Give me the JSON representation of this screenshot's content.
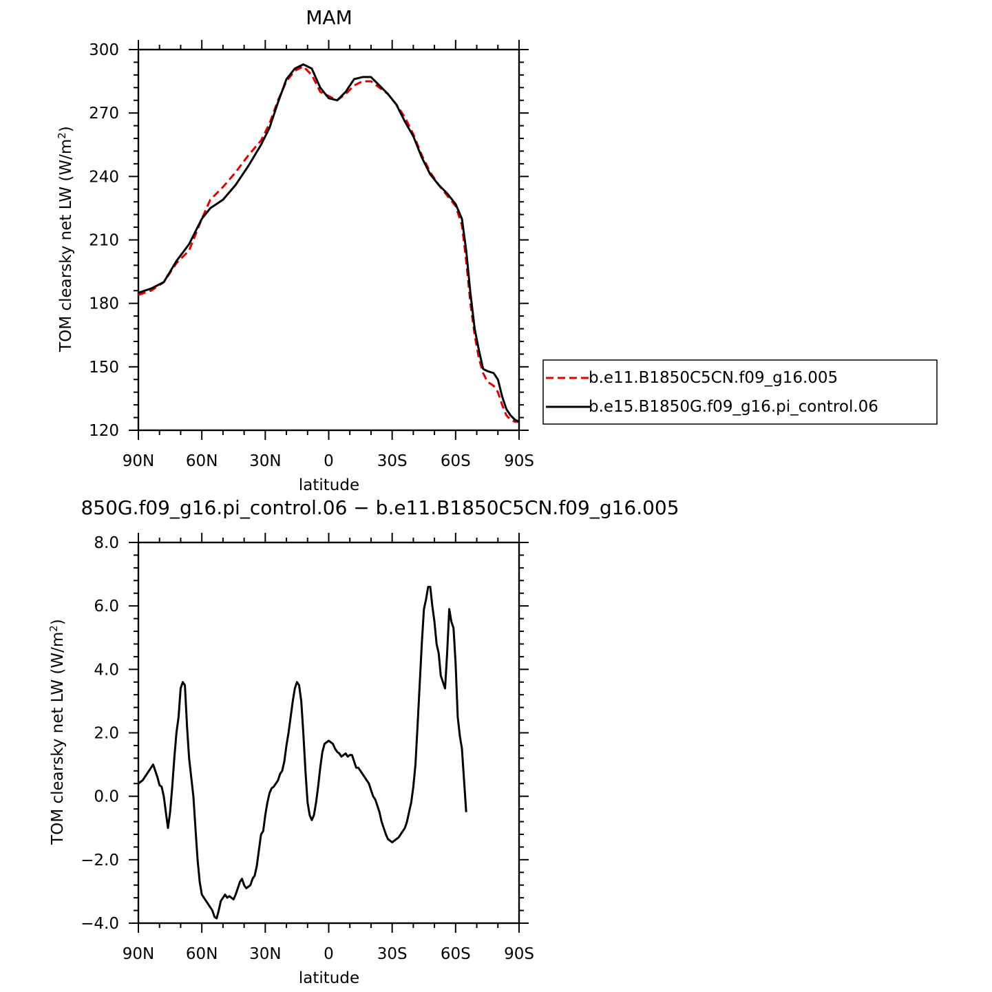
{
  "chart_data": [
    {
      "type": "line",
      "title": "MAM",
      "xlabel": "latitude",
      "ylabel_main": "TOM clearsky net LW (W/m",
      "ylabel_sup": "2",
      "ylabel_close": ")",
      "xlim": [
        -90,
        90
      ],
      "ylim": [
        120,
        300
      ],
      "x_ticks": [
        {
          "value": -90,
          "label": "90N"
        },
        {
          "value": -60,
          "label": "60N"
        },
        {
          "value": -30,
          "label": "30N"
        },
        {
          "value": 0,
          "label": "0"
        },
        {
          "value": 30,
          "label": "30S"
        },
        {
          "value": 60,
          "label": "60S"
        },
        {
          "value": 90,
          "label": "90S"
        }
      ],
      "y_ticks": [
        {
          "value": 120,
          "label": "120"
        },
        {
          "value": 150,
          "label": "150"
        },
        {
          "value": 180,
          "label": "180"
        },
        {
          "value": 210,
          "label": "210"
        },
        {
          "value": 240,
          "label": "240"
        },
        {
          "value": 270,
          "label": "270"
        },
        {
          "value": 300,
          "label": "300"
        }
      ],
      "legend": {
        "position": "right",
        "entries": [
          {
            "label": "b.e11.B1850C5CN.f09_g16.005",
            "color": "#e00000",
            "dash": "dashed"
          },
          {
            "label": "b.e15.B1850G.f09_g16.pi_control.06",
            "color": "#000000",
            "dash": "solid"
          }
        ]
      },
      "series": [
        {
          "name": "b.e11.B1850C5CN.f09_g16.005",
          "color": "#e00000",
          "dash": "dashed",
          "points": [
            [
              -90,
              184
            ],
            [
              -84,
              186
            ],
            [
              -78,
              190
            ],
            [
              -72,
              199
            ],
            [
              -66,
              205
            ],
            [
              -60,
              220
            ],
            [
              -56,
              229
            ],
            [
              -50,
              235
            ],
            [
              -44,
              242
            ],
            [
              -38,
              250
            ],
            [
              -32,
              257
            ],
            [
              -28,
              265
            ],
            [
              -24,
              276
            ],
            [
              -20,
              285
            ],
            [
              -16,
              290
            ],
            [
              -12,
              292
            ],
            [
              -8,
              288
            ],
            [
              -4,
              280
            ],
            [
              0,
              278
            ],
            [
              4,
              276
            ],
            [
              8,
              279
            ],
            [
              12,
              283
            ],
            [
              16,
              285
            ],
            [
              20,
              285
            ],
            [
              24,
              282
            ],
            [
              28,
              279
            ],
            [
              32,
              274
            ],
            [
              36,
              268
            ],
            [
              40,
              260
            ],
            [
              44,
              250
            ],
            [
              48,
              242
            ],
            [
              52,
              236
            ],
            [
              56,
              231
            ],
            [
              60,
              226
            ],
            [
              63,
              217
            ],
            [
              65,
              200
            ],
            [
              67,
              180
            ],
            [
              69,
              165
            ],
            [
              71,
              154
            ],
            [
              73,
              147
            ],
            [
              75,
              143
            ],
            [
              78,
              141
            ],
            [
              80,
              138
            ],
            [
              82,
              132
            ],
            [
              84,
              127
            ],
            [
              86,
              125
            ],
            [
              88,
              124
            ],
            [
              90,
              124
            ]
          ]
        },
        {
          "name": "b.e15.B1850G.f09_g16.pi_control.06",
          "color": "#000000",
          "dash": "solid",
          "points": [
            [
              -90,
              185
            ],
            [
              -84,
              187
            ],
            [
              -78,
              190
            ],
            [
              -72,
              200
            ],
            [
              -66,
              208
            ],
            [
              -60,
              220
            ],
            [
              -56,
              225
            ],
            [
              -50,
              229
            ],
            [
              -44,
              236
            ],
            [
              -38,
              245
            ],
            [
              -32,
              255
            ],
            [
              -28,
              263
            ],
            [
              -24,
              275
            ],
            [
              -20,
              286
            ],
            [
              -16,
              291
            ],
            [
              -12,
              293
            ],
            [
              -8,
              291
            ],
            [
              -4,
              282
            ],
            [
              0,
              277
            ],
            [
              4,
              276
            ],
            [
              8,
              280
            ],
            [
              12,
              286
            ],
            [
              16,
              287
            ],
            [
              20,
              287
            ],
            [
              24,
              283
            ],
            [
              28,
              279
            ],
            [
              32,
              274
            ],
            [
              36,
              266
            ],
            [
              40,
              259
            ],
            [
              44,
              249
            ],
            [
              48,
              241
            ],
            [
              52,
              236
            ],
            [
              56,
              232
            ],
            [
              60,
              227
            ],
            [
              63,
              220
            ],
            [
              65,
              205
            ],
            [
              67,
              185
            ],
            [
              69,
              168
            ],
            [
              71,
              158
            ],
            [
              73,
              149
            ],
            [
              75,
              148
            ],
            [
              78,
              147
            ],
            [
              80,
              144
            ],
            [
              82,
              136
            ],
            [
              84,
              130
            ],
            [
              86,
              127
            ],
            [
              88,
              125
            ],
            [
              90,
              124
            ]
          ]
        }
      ]
    },
    {
      "type": "line",
      "title": "850G.f09_g16.pi_control.06 − b.e11.B1850C5CN.f09_g16.005",
      "xlabel": "latitude",
      "ylabel_main": "TOM clearsky net LW (W/m",
      "ylabel_sup": "2",
      "ylabel_close": ")",
      "xlim": [
        -90,
        90
      ],
      "ylim": [
        -4.0,
        8.0
      ],
      "x_ticks": [
        {
          "value": -90,
          "label": "90N"
        },
        {
          "value": -60,
          "label": "60N"
        },
        {
          "value": -30,
          "label": "30N"
        },
        {
          "value": 0,
          "label": "0"
        },
        {
          "value": 30,
          "label": "30S"
        },
        {
          "value": 60,
          "label": "60S"
        },
        {
          "value": 90,
          "label": "90S"
        }
      ],
      "y_ticks": [
        {
          "value": -4.0,
          "label": "−4.0"
        },
        {
          "value": -2.0,
          "label": "−2.0"
        },
        {
          "value": 0.0,
          "label": "0.0"
        },
        {
          "value": 2.0,
          "label": "2.0"
        },
        {
          "value": 4.0,
          "label": "4.0"
        },
        {
          "value": 6.0,
          "label": "6.0"
        },
        {
          "value": 8.0,
          "label": "8.0"
        }
      ],
      "series": [
        {
          "color": "#000000",
          "dash": "solid",
          "points": [
            [
              -90,
              0.4
            ],
            [
              -88,
              0.5
            ],
            [
              -86,
              0.7
            ],
            [
              -84,
              0.9
            ],
            [
              -83,
              1.0
            ],
            [
              -81,
              0.6
            ],
            [
              -80,
              0.35
            ],
            [
              -79,
              0.3
            ],
            [
              -78,
              0.0
            ],
            [
              -77,
              -0.5
            ],
            [
              -76,
              -1.0
            ],
            [
              -75,
              -0.5
            ],
            [
              -74,
              0.3
            ],
            [
              -73,
              1.2
            ],
            [
              -72,
              2.0
            ],
            [
              -71,
              2.5
            ],
            [
              -70,
              3.4
            ],
            [
              -69,
              3.6
            ],
            [
              -68,
              3.5
            ],
            [
              -67,
              2.2
            ],
            [
              -66,
              1.2
            ],
            [
              -64,
              0.0
            ],
            [
              -63,
              -1.0
            ],
            [
              -62,
              -2.0
            ],
            [
              -61,
              -2.7
            ],
            [
              -60,
              -3.1
            ],
            [
              -58,
              -3.3
            ],
            [
              -57,
              -3.4
            ],
            [
              -55,
              -3.6
            ],
            [
              -54,
              -3.8
            ],
            [
              -53,
              -3.85
            ],
            [
              -52,
              -3.6
            ],
            [
              -51,
              -3.3
            ],
            [
              -50,
              -3.2
            ],
            [
              -49,
              -3.1
            ],
            [
              -48,
              -3.2
            ],
            [
              -47,
              -3.15
            ],
            [
              -46,
              -3.2
            ],
            [
              -45,
              -3.25
            ],
            [
              -44,
              -3.1
            ],
            [
              -43,
              -2.9
            ],
            [
              -42,
              -2.7
            ],
            [
              -41,
              -2.6
            ],
            [
              -40,
              -2.8
            ],
            [
              -39,
              -2.9
            ],
            [
              -38,
              -2.85
            ],
            [
              -37,
              -2.8
            ],
            [
              -36,
              -2.6
            ],
            [
              -35,
              -2.5
            ],
            [
              -34,
              -2.2
            ],
            [
              -33,
              -1.7
            ],
            [
              -32,
              -1.2
            ],
            [
              -31,
              -1.1
            ],
            [
              -30,
              -0.6
            ],
            [
              -29,
              -0.2
            ],
            [
              -28,
              0.1
            ],
            [
              -27,
              0.25
            ],
            [
              -26,
              0.3
            ],
            [
              -25,
              0.4
            ],
            [
              -24,
              0.5
            ],
            [
              -23,
              0.7
            ],
            [
              -22,
              0.8
            ],
            [
              -21,
              1.1
            ],
            [
              -20,
              1.6
            ],
            [
              -19,
              2.0
            ],
            [
              -18,
              2.5
            ],
            [
              -17,
              3.0
            ],
            [
              -16,
              3.4
            ],
            [
              -15,
              3.6
            ],
            [
              -14,
              3.5
            ],
            [
              -13,
              3.0
            ],
            [
              -12,
              2.0
            ],
            [
              -11,
              0.8
            ],
            [
              -10,
              -0.2
            ],
            [
              -9,
              -0.6
            ],
            [
              -8,
              -0.75
            ],
            [
              -7,
              -0.6
            ],
            [
              -6,
              -0.2
            ],
            [
              -5,
              0.3
            ],
            [
              -4,
              0.9
            ],
            [
              -3,
              1.4
            ],
            [
              -2,
              1.65
            ],
            [
              -1,
              1.7
            ],
            [
              0,
              1.75
            ],
            [
              1,
              1.7
            ],
            [
              2,
              1.65
            ],
            [
              3,
              1.5
            ],
            [
              4,
              1.4
            ],
            [
              5,
              1.35
            ],
            [
              6,
              1.25
            ],
            [
              7,
              1.3
            ],
            [
              8,
              1.35
            ],
            [
              9,
              1.25
            ],
            [
              10,
              1.3
            ],
            [
              11,
              1.3
            ],
            [
              12,
              1.1
            ],
            [
              13,
              0.9
            ],
            [
              14,
              0.9
            ],
            [
              15,
              0.8
            ],
            [
              16,
              0.7
            ],
            [
              17,
              0.6
            ],
            [
              18,
              0.5
            ],
            [
              19,
              0.4
            ],
            [
              20,
              0.2
            ],
            [
              21,
              0.0
            ],
            [
              22,
              -0.1
            ],
            [
              23,
              -0.3
            ],
            [
              24,
              -0.5
            ],
            [
              25,
              -0.8
            ],
            [
              26,
              -1.0
            ],
            [
              27,
              -1.2
            ],
            [
              28,
              -1.35
            ],
            [
              29,
              -1.4
            ],
            [
              30,
              -1.45
            ],
            [
              31,
              -1.4
            ],
            [
              32,
              -1.35
            ],
            [
              33,
              -1.3
            ],
            [
              34,
              -1.2
            ],
            [
              35,
              -1.1
            ],
            [
              36,
              -1.0
            ],
            [
              37,
              -0.8
            ],
            [
              38,
              -0.5
            ],
            [
              39,
              -0.2
            ],
            [
              40,
              0.3
            ],
            [
              41,
              1.0
            ],
            [
              42,
              2.2
            ],
            [
              43,
              3.5
            ],
            [
              44,
              4.8
            ],
            [
              45,
              5.9
            ],
            [
              46,
              6.2
            ],
            [
              47,
              6.6
            ],
            [
              48,
              6.6
            ],
            [
              49,
              6.0
            ],
            [
              50,
              5.5
            ],
            [
              51,
              4.8
            ],
            [
              52,
              4.5
            ],
            [
              53,
              3.8
            ],
            [
              54,
              3.6
            ],
            [
              55,
              3.4
            ],
            [
              56,
              4.5
            ],
            [
              57,
              5.9
            ],
            [
              58,
              5.5
            ],
            [
              59,
              5.3
            ],
            [
              60,
              4.2
            ],
            [
              61,
              2.5
            ],
            [
              62,
              1.9
            ],
            [
              63,
              1.5
            ],
            [
              64,
              0.5
            ],
            [
              65,
              -0.5
            ]
          ]
        }
      ]
    }
  ]
}
